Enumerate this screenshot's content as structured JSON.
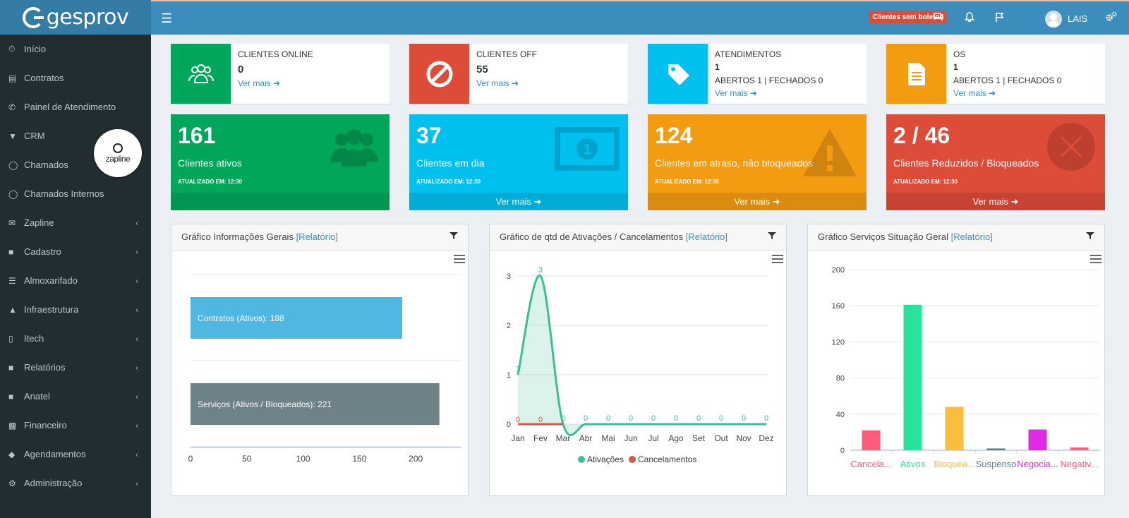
{
  "app": {
    "logo_text": "gesprov",
    "badge": "Clientes sem boletos",
    "user": "LAIS"
  },
  "sidebar": {
    "items": [
      {
        "label": "Início",
        "icon": "dashboard-icon",
        "chevron": false
      },
      {
        "label": "Contratos",
        "icon": "file-icon",
        "chevron": false
      },
      {
        "label": "Painel de Atendimento",
        "icon": "phone-icon",
        "chevron": false
      },
      {
        "label": "CRM",
        "icon": "filter-icon",
        "chevron": false
      },
      {
        "label": "Chamados",
        "icon": "headset-icon",
        "chevron": false
      },
      {
        "label": "Chamados Internos",
        "icon": "headset-icon",
        "chevron": false
      },
      {
        "label": "Zapline",
        "icon": "chat-icon",
        "chevron": true
      },
      {
        "label": "Cadastro",
        "icon": "book-icon",
        "chevron": true
      },
      {
        "label": "Almoxarifado",
        "icon": "database-icon",
        "chevron": true
      },
      {
        "label": "Infraestrutura",
        "icon": "bank-icon",
        "chevron": true
      },
      {
        "label": "Itech",
        "icon": "mobile-icon",
        "chevron": true
      },
      {
        "label": "Relatórios",
        "icon": "book-icon",
        "chevron": true
      },
      {
        "label": "Anatel",
        "icon": "book-icon",
        "chevron": true
      },
      {
        "label": "Financeiro",
        "icon": "money-icon",
        "chevron": true
      },
      {
        "label": "Agendamentos",
        "icon": "tag-icon",
        "chevron": true
      },
      {
        "label": "Administração",
        "icon": "cogs-icon",
        "chevron": true
      }
    ],
    "zapline_bubble": "zapline"
  },
  "info_boxes": [
    {
      "title": "CLIENTES ONLINE",
      "value": "0",
      "sub": "",
      "link": "Ver mais",
      "color": "#00a65a"
    },
    {
      "title": "CLIENTES OFF",
      "value": "55",
      "sub": "",
      "link": "Ver mais",
      "color": "#dd4b39"
    },
    {
      "title": "ATENDIMENTOS",
      "value": "1",
      "sub": "ABERTOS 1 | FECHADOS 0",
      "link": "Ver mais",
      "color": "#00c0ef"
    },
    {
      "title": "OS",
      "value": "1",
      "sub": "ABERTOS 1 | FECHADOS 0",
      "link": "Ver mais",
      "color": "#f39c12"
    }
  ],
  "small_boxes": [
    {
      "value": "161",
      "label": "Clientes ativos",
      "updated": "ATUALIZADO EM: 12:30",
      "footer": "",
      "color": "#00a65a"
    },
    {
      "value": "37",
      "label": "Clientes em dia",
      "updated": "ATUALIZADO EM: 12:30",
      "footer": "Ver mais",
      "color": "#00c0ef"
    },
    {
      "value": "124",
      "label": "Clientes em atraso, não bloqueados",
      "updated": "ATUALIZADO EM: 12:30",
      "footer": "Ver mais",
      "color": "#f39c12"
    },
    {
      "value": "2 / 46",
      "label": "Clientes Reduzidos / Bloqueados",
      "updated": "ATUALIZADO EM: 12:30",
      "footer": "Ver mais",
      "color": "#dd4b39"
    }
  ],
  "panels": [
    {
      "title": "Gráfico Informações Gerais ",
      "link": "[Relatório]"
    },
    {
      "title": "Gráfico de qtd de Ativações / Cancelamentos ",
      "link": "[Relatório]"
    },
    {
      "title": "Gráfico Serviços Situação Geral ",
      "link": "[Relatório]"
    }
  ],
  "chart_data": [
    {
      "type": "bar",
      "orientation": "horizontal",
      "categories": [
        "Contratos (Ativos)",
        "Serviços (Ativos / Bloqueados)"
      ],
      "values": [
        188,
        221
      ],
      "data_labels": [
        "Contratos (Ativos): 188",
        "Serviços (Ativos / Bloqueados): 221"
      ],
      "colors": [
        "#4fb8e2",
        "#6f8189"
      ],
      "xlim": [
        0,
        240
      ],
      "xticks": [
        0,
        50,
        100,
        150,
        200
      ]
    },
    {
      "type": "line",
      "categories": [
        "Jan",
        "Fev",
        "Mar",
        "Abr",
        "Mai",
        "Jun",
        "Jul",
        "Ago",
        "Set",
        "Out",
        "Nov",
        "Dez"
      ],
      "series": [
        {
          "name": "Ativações",
          "values": [
            1,
            3,
            0,
            0,
            0,
            0,
            0,
            0,
            0,
            0,
            0,
            0
          ],
          "color": "#3bbf98"
        },
        {
          "name": "Cancelamentos",
          "values": [
            0,
            0,
            0,
            0,
            0,
            0,
            0,
            0,
            0,
            0,
            0,
            0
          ],
          "color": "#d9534f"
        }
      ],
      "ylim": [
        0,
        3
      ],
      "yticks": [
        0,
        1,
        2,
        3
      ],
      "legend": "bottom"
    },
    {
      "type": "bar",
      "categories": [
        "Cancela...",
        "Ativos",
        "Bloquea...",
        "Suspenso",
        "Negocia...",
        "Negativ..."
      ],
      "values": [
        22,
        161,
        48,
        2,
        23,
        3
      ],
      "colors": [
        "#ff5c7c",
        "#27e39e",
        "#fbbd3d",
        "#5d7f8a",
        "#df2be6",
        "#ff5c7c"
      ],
      "ylim": [
        0,
        200
      ],
      "yticks": [
        0,
        40,
        80,
        120,
        160,
        200
      ]
    }
  ]
}
